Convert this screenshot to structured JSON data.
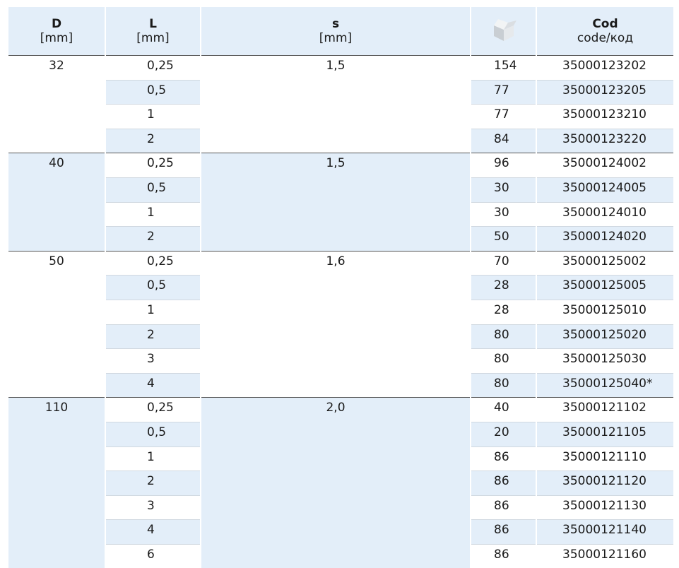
{
  "header": {
    "columns": [
      {
        "title": "D",
        "unit": "[mm]"
      },
      {
        "title": "L",
        "unit": "[mm]"
      },
      {
        "title": "s",
        "unit": "[mm]"
      },
      {
        "title": "Cod",
        "unit": "code/код"
      }
    ]
  },
  "groups": [
    {
      "D": "32",
      "s": "1,5",
      "rows": [
        [
          "0,25",
          "154",
          "35000123202"
        ],
        [
          "0,5",
          "77",
          "35000123205"
        ],
        [
          "1",
          "77",
          "35000123210"
        ],
        [
          "2",
          "84",
          "35000123220"
        ]
      ]
    },
    {
      "D": "40",
      "s": "1,5",
      "rows": [
        [
          "0,25",
          "96",
          "35000124002"
        ],
        [
          "0,5",
          "30",
          "35000124005"
        ],
        [
          "1",
          "30",
          "35000124010"
        ],
        [
          "2",
          "50",
          "35000124020"
        ]
      ]
    },
    {
      "D": "50",
      "s": "1,6",
      "rows": [
        [
          "0,25",
          "70",
          "35000125002"
        ],
        [
          "0,5",
          "28",
          "35000125005"
        ],
        [
          "1",
          "28",
          "35000125010"
        ],
        [
          "2",
          "80",
          "35000125020"
        ],
        [
          "3",
          "80",
          "35000125030"
        ],
        [
          "4",
          "80",
          "35000125040*"
        ]
      ]
    },
    {
      "D": "110",
      "s": "2,0",
      "rows": [
        [
          "0,25",
          "40",
          "35000121102"
        ],
        [
          "0,5",
          "20",
          "35000121105"
        ],
        [
          "1",
          "86",
          "35000121110"
        ],
        [
          "2",
          "86",
          "35000121120"
        ],
        [
          "3",
          "86",
          "35000121130"
        ],
        [
          "4",
          "86",
          "35000121140"
        ],
        [
          "6",
          "86",
          "35000121160"
        ]
      ]
    }
  ]
}
